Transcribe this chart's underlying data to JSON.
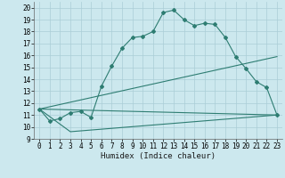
{
  "title": "",
  "xlabel": "Humidex (Indice chaleur)",
  "ylabel": "",
  "bg_color": "#cce8ee",
  "grid_color": "#aacdd6",
  "line_color": "#2e7d72",
  "xlim": [
    -0.5,
    23.5
  ],
  "ylim": [
    9,
    20.5
  ],
  "xticks": [
    0,
    1,
    2,
    3,
    4,
    5,
    6,
    7,
    8,
    9,
    10,
    11,
    12,
    13,
    14,
    15,
    16,
    17,
    18,
    19,
    20,
    21,
    22,
    23
  ],
  "yticks": [
    9,
    10,
    11,
    12,
    13,
    14,
    15,
    16,
    17,
    18,
    19,
    20
  ],
  "line1_x": [
    0,
    1,
    2,
    3,
    4,
    5,
    6,
    7,
    8,
    9,
    10,
    11,
    12,
    13,
    14,
    15,
    16,
    17,
    18,
    19,
    20,
    21,
    22,
    23
  ],
  "line1_y": [
    11.5,
    10.5,
    10.7,
    11.2,
    11.3,
    10.8,
    13.4,
    15.1,
    16.6,
    17.5,
    17.6,
    18.0,
    19.6,
    19.8,
    19.0,
    18.5,
    18.7,
    18.6,
    17.5,
    15.9,
    14.9,
    13.8,
    13.3,
    11.0
  ],
  "line2_x": [
    0,
    23
  ],
  "line2_y": [
    11.5,
    15.9
  ],
  "line3_x": [
    0,
    3,
    23
  ],
  "line3_y": [
    11.5,
    9.6,
    11.0
  ],
  "line4_x": [
    0,
    23
  ],
  "line4_y": [
    11.5,
    11.0
  ],
  "marker": "D",
  "markersize": 2.0,
  "linewidth": 0.8
}
